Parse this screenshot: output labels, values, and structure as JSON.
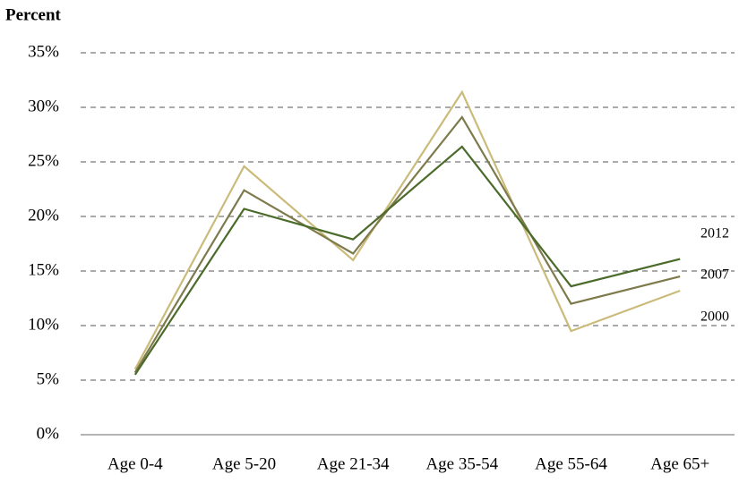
{
  "chart_data": {
    "type": "line",
    "title": "Percent",
    "categories": [
      "Age 0-4",
      "Age 5-20",
      "Age 21-34",
      "Age 35-54",
      "Age 55-64",
      "Age 65+"
    ],
    "series": [
      {
        "name": "2000",
        "color": "#cbbb7a",
        "values": [
          6.0,
          24.6,
          16.0,
          31.4,
          9.5,
          13.2
        ]
      },
      {
        "name": "2007",
        "color": "#7d7a4c",
        "values": [
          5.7,
          22.4,
          16.6,
          29.1,
          12.0,
          14.5
        ]
      },
      {
        "name": "2012",
        "color": "#4b6b2a",
        "values": [
          5.5,
          20.7,
          17.9,
          26.4,
          13.6,
          16.1
        ]
      }
    ],
    "ylim": [
      0,
      35
    ],
    "yticks": [
      {
        "value": 0,
        "label": "0%"
      },
      {
        "value": 5,
        "label": "5%"
      },
      {
        "value": 10,
        "label": "10%"
      },
      {
        "value": 15,
        "label": "15%"
      },
      {
        "value": 20,
        "label": "20%"
      },
      {
        "value": 25,
        "label": "25%"
      },
      {
        "value": 30,
        "label": "30%"
      },
      {
        "value": 35,
        "label": "35%"
      }
    ],
    "grid": true
  }
}
